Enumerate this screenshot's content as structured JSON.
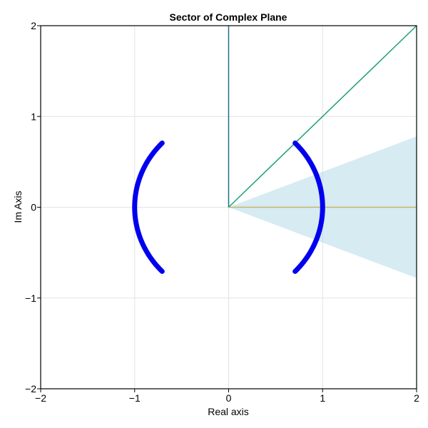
{
  "chart_data": {
    "type": "line",
    "title": "Sector of Complex Plane",
    "xlabel": "Real axis",
    "ylabel": "Im Axis",
    "xlim": [
      -2,
      2
    ],
    "ylim": [
      -2,
      2
    ],
    "xticks": [
      -2,
      -1,
      0,
      1,
      2
    ],
    "yticks": [
      -2,
      -1,
      0,
      1,
      2
    ],
    "xtick_labels": [
      "−2",
      "−1",
      "0",
      "1",
      "2"
    ],
    "ytick_labels": [
      "−2",
      "−1",
      "0",
      "1",
      "2"
    ],
    "grid": true,
    "series": [
      {
        "name": "positive-real-axis",
        "kind": "line",
        "color": "#c8b46e",
        "x": [
          0,
          2
        ],
        "y": [
          0,
          0
        ]
      },
      {
        "name": "imaginary-axis-ray",
        "kind": "line",
        "color": "#1f6f8b",
        "x": [
          0,
          0
        ],
        "y": [
          0,
          2
        ]
      },
      {
        "name": "diagonal-ray",
        "kind": "line",
        "color": "#1aa07a",
        "x": [
          0,
          2
        ],
        "y": [
          0,
          2
        ]
      },
      {
        "name": "sector-region",
        "kind": "area",
        "color": "#add8e6",
        "opacity": 0.5,
        "x": [
          0,
          2,
          2
        ],
        "y": [
          0,
          0.78,
          -0.78
        ]
      },
      {
        "name": "unit-circle-arc-right",
        "kind": "arc",
        "color": "#0000ee",
        "radius": 1,
        "center": [
          0,
          0
        ],
        "angle_start_deg": -45,
        "angle_end_deg": 45
      },
      {
        "name": "unit-circle-arc-left",
        "kind": "arc",
        "color": "#0000ee",
        "radius": 1,
        "center": [
          0,
          0
        ],
        "angle_start_deg": 135,
        "angle_end_deg": 225
      }
    ]
  }
}
